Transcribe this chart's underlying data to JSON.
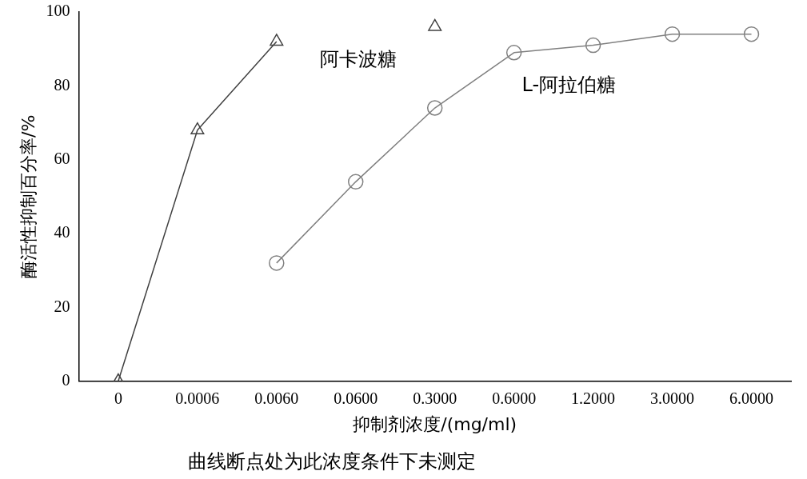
{
  "chart_data": {
    "type": "line",
    "categories": [
      "0",
      "0.0006",
      "0.0060",
      "0.0600",
      "0.3000",
      "0.6000",
      "1.2000",
      "3.0000",
      "6.0000"
    ],
    "series": [
      {
        "name": "阿卡波糖",
        "color": "#404040",
        "marker": "triangle",
        "values": [
          0,
          68,
          92,
          null,
          96,
          null,
          null,
          null,
          null
        ]
      },
      {
        "name": "L-阿拉伯糖",
        "color": "#808080",
        "marker": "circle",
        "values": [
          null,
          null,
          32,
          54,
          74,
          89,
          91,
          94,
          94
        ]
      }
    ],
    "ylim": [
      0,
      100
    ],
    "yticks": [
      0,
      20,
      40,
      60,
      80,
      100
    ],
    "xlabel": "抑制剂浓度/(mg/ml)",
    "ylabel": "酶活性抑制百分率/%",
    "annotations": [
      "曲线断点处为此浓度条件下未测定"
    ],
    "grid": false,
    "legend": false
  }
}
